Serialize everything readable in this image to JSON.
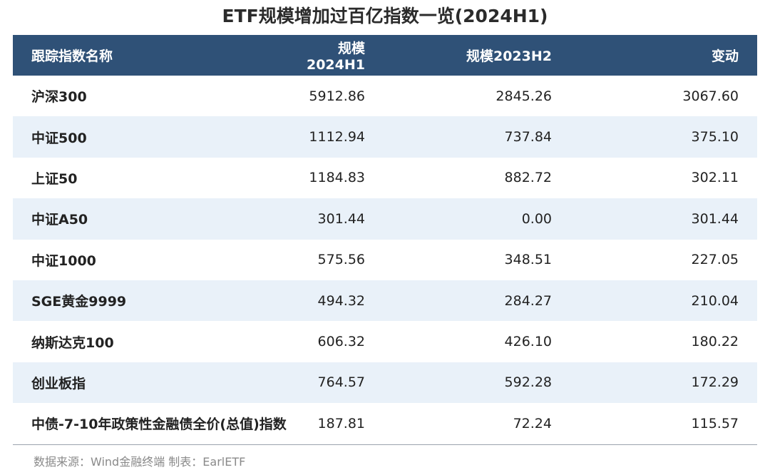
{
  "title": "ETF规模增加过百亿指数一览(2024H1)",
  "header": {
    "col1": "跟踪指数名称",
    "col2": "规模2024H1",
    "col3": "规模2023H2",
    "col4": "变动"
  },
  "rows": [
    {
      "name": "沪深300",
      "h1_2024": "5912.86",
      "h2_2023": "2845.26",
      "change": "3067.60"
    },
    {
      "name": "中证500",
      "h1_2024": "1112.94",
      "h2_2023": "737.84",
      "change": "375.10"
    },
    {
      "name": "上证50",
      "h1_2024": "1184.83",
      "h2_2023": "882.72",
      "change": "302.11"
    },
    {
      "name": "中证A50",
      "h1_2024": "301.44",
      "h2_2023": "0.00",
      "change": "301.44"
    },
    {
      "name": "中证1000",
      "h1_2024": "575.56",
      "h2_2023": "348.51",
      "change": "227.05"
    },
    {
      "name": "SGE黄金9999",
      "h1_2024": "494.32",
      "h2_2023": "284.27",
      "change": "210.04"
    },
    {
      "name": "纳斯达克100",
      "h1_2024": "606.32",
      "h2_2023": "426.10",
      "change": "180.22"
    },
    {
      "name": "创业板指",
      "h1_2024": "764.57",
      "h2_2023": "592.28",
      "change": "172.29"
    },
    {
      "name": "中债-7-10年政策性金融债全价(总值)指数",
      "h1_2024": "187.81",
      "h2_2023": "72.24",
      "change": "115.57"
    }
  ],
  "footer": {
    "source": "数据来源：Wind金融终端 制表：EarlETF"
  },
  "colors": {
    "header_bg": "#2f5177",
    "alt_row_bg": "#e9f1f9"
  }
}
